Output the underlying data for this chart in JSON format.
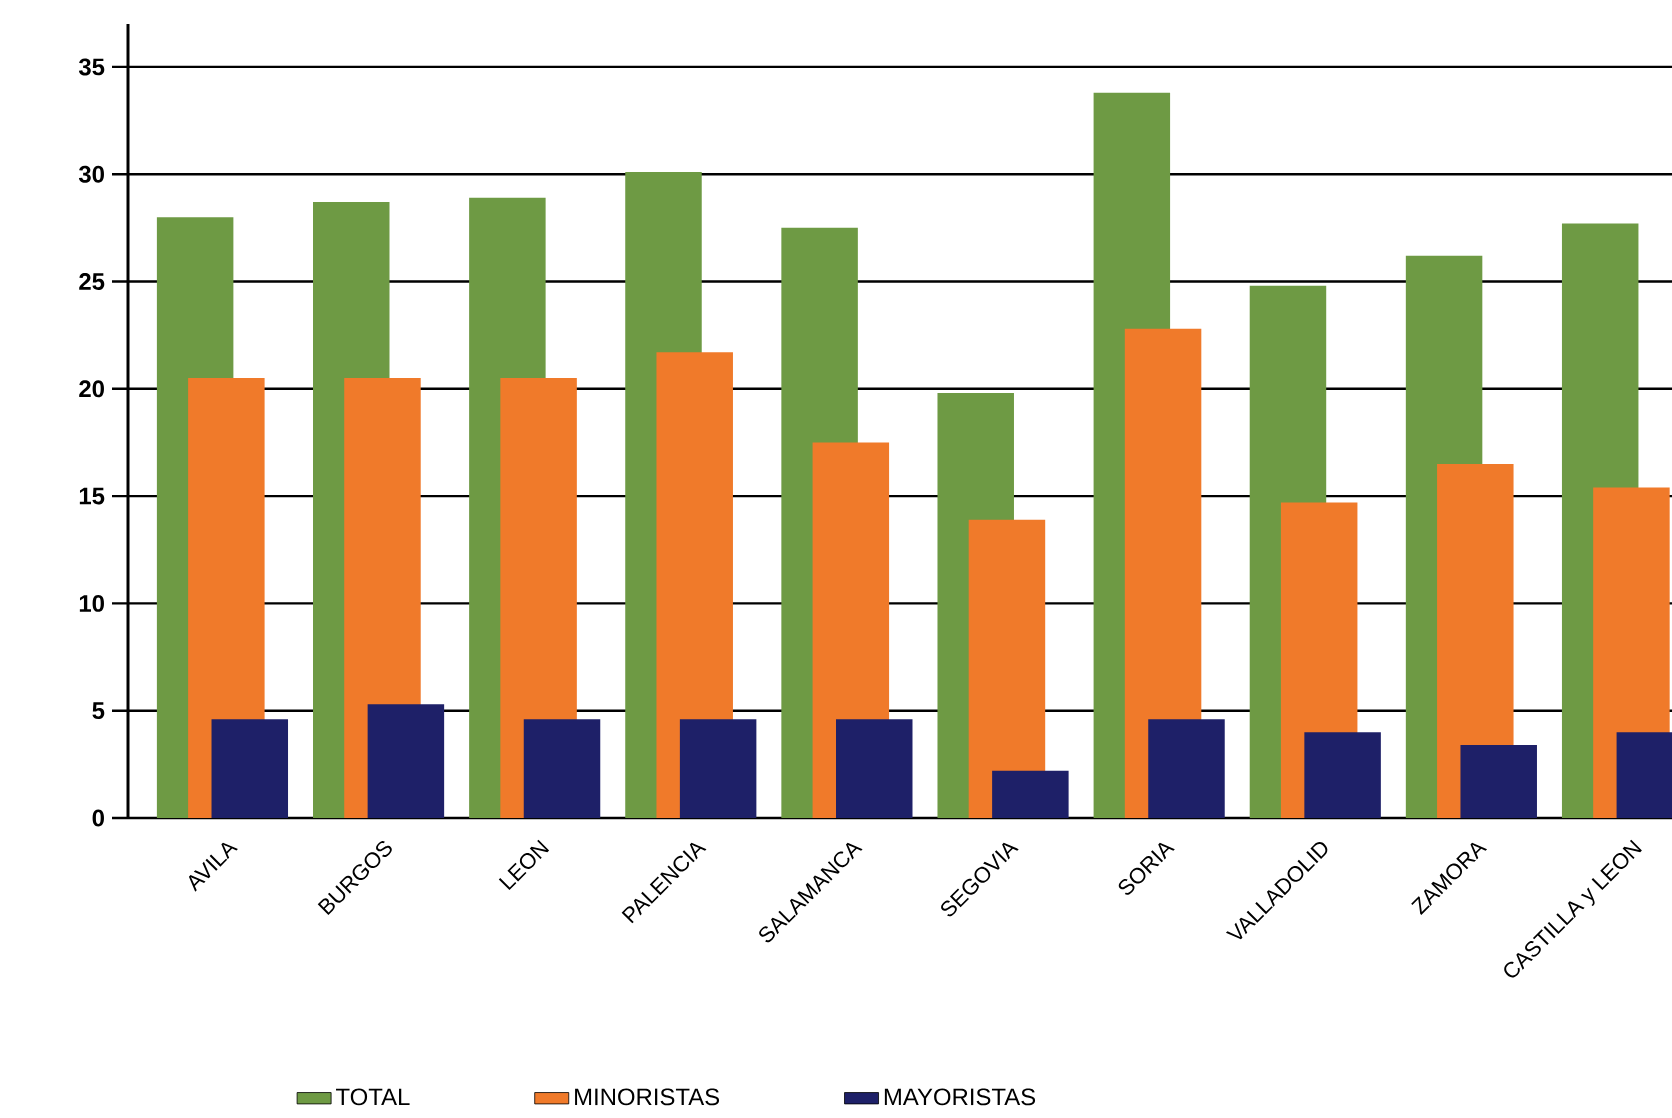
{
  "chart_data": {
    "type": "bar",
    "categories": [
      "AVILA",
      "BURGOS",
      "LEON",
      "PALENCIA",
      "SALAMANCA",
      "SEGOVIA",
      "SORIA",
      "VALLADOLID",
      "ZAMORA",
      "CASTILLA y LEON"
    ],
    "series": [
      {
        "name": "TOTAL",
        "color": "#6e9a44",
        "values": [
          28.0,
          28.7,
          28.9,
          30.1,
          27.5,
          19.8,
          33.8,
          24.8,
          26.2,
          27.7
        ]
      },
      {
        "name": "MINORISTAS",
        "color": "#f07a2a",
        "values": [
          20.5,
          20.5,
          20.5,
          21.7,
          17.5,
          13.9,
          22.8,
          14.7,
          16.5,
          15.4
        ]
      },
      {
        "name": "MAYORISTAS",
        "color": "#1e2068",
        "values": [
          4.6,
          5.3,
          4.6,
          4.6,
          4.6,
          2.2,
          4.6,
          4.0,
          3.4,
          4.0
        ]
      }
    ],
    "ylim": [
      0,
      37
    ],
    "yticks": [
      0,
      5,
      10,
      15,
      20,
      25,
      30,
      35
    ],
    "grid": "y",
    "legend": "bottom"
  }
}
